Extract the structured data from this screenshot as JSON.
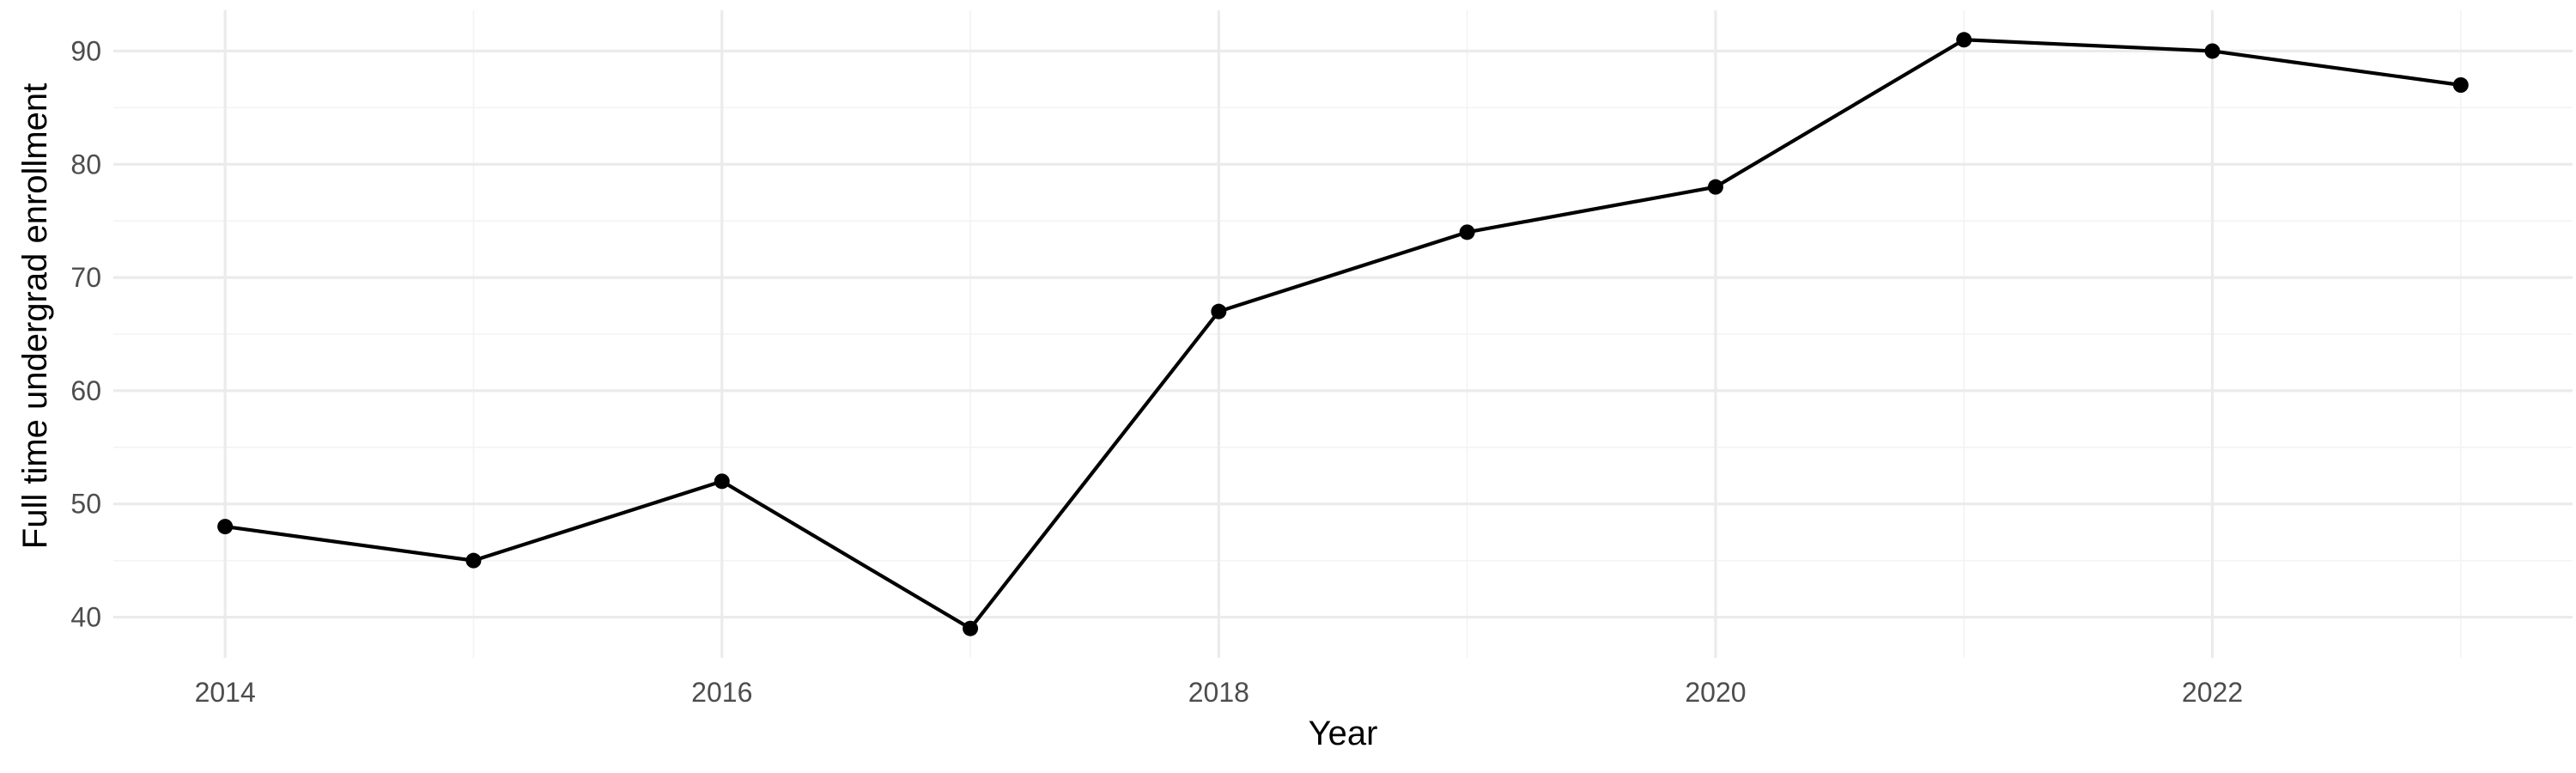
{
  "chart_data": {
    "type": "line",
    "title": "",
    "xlabel": "Year",
    "ylabel": "Full time undergrad enrollment",
    "x": [
      2014,
      2015,
      2016,
      2017,
      2018,
      2019,
      2020,
      2021,
      2022,
      2023
    ],
    "series": [
      {
        "values": [
          48,
          45,
          52,
          39,
          67,
          74,
          78,
          91,
          90,
          87
        ]
      }
    ],
    "xlim": [
      2013.55,
      2023.45
    ],
    "ylim": [
      36.4,
      93.6
    ],
    "x_ticks": [
      2014,
      2016,
      2018,
      2020,
      2022
    ],
    "x_tick_labels": [
      "2014",
      "2016",
      "2018",
      "2020",
      "2022"
    ],
    "y_ticks": [
      40,
      50,
      60,
      70,
      80,
      90
    ],
    "y_tick_labels": [
      "40",
      "50",
      "60",
      "70",
      "80",
      "90"
    ],
    "grid": true,
    "legend": "none",
    "colors": {
      "line": "#000000",
      "points": "#000000",
      "background": "#ffffff",
      "grid_major": "#ebebeb",
      "grid_minor": "#f3f3f3",
      "tick_text": "#4d4d4d"
    }
  }
}
